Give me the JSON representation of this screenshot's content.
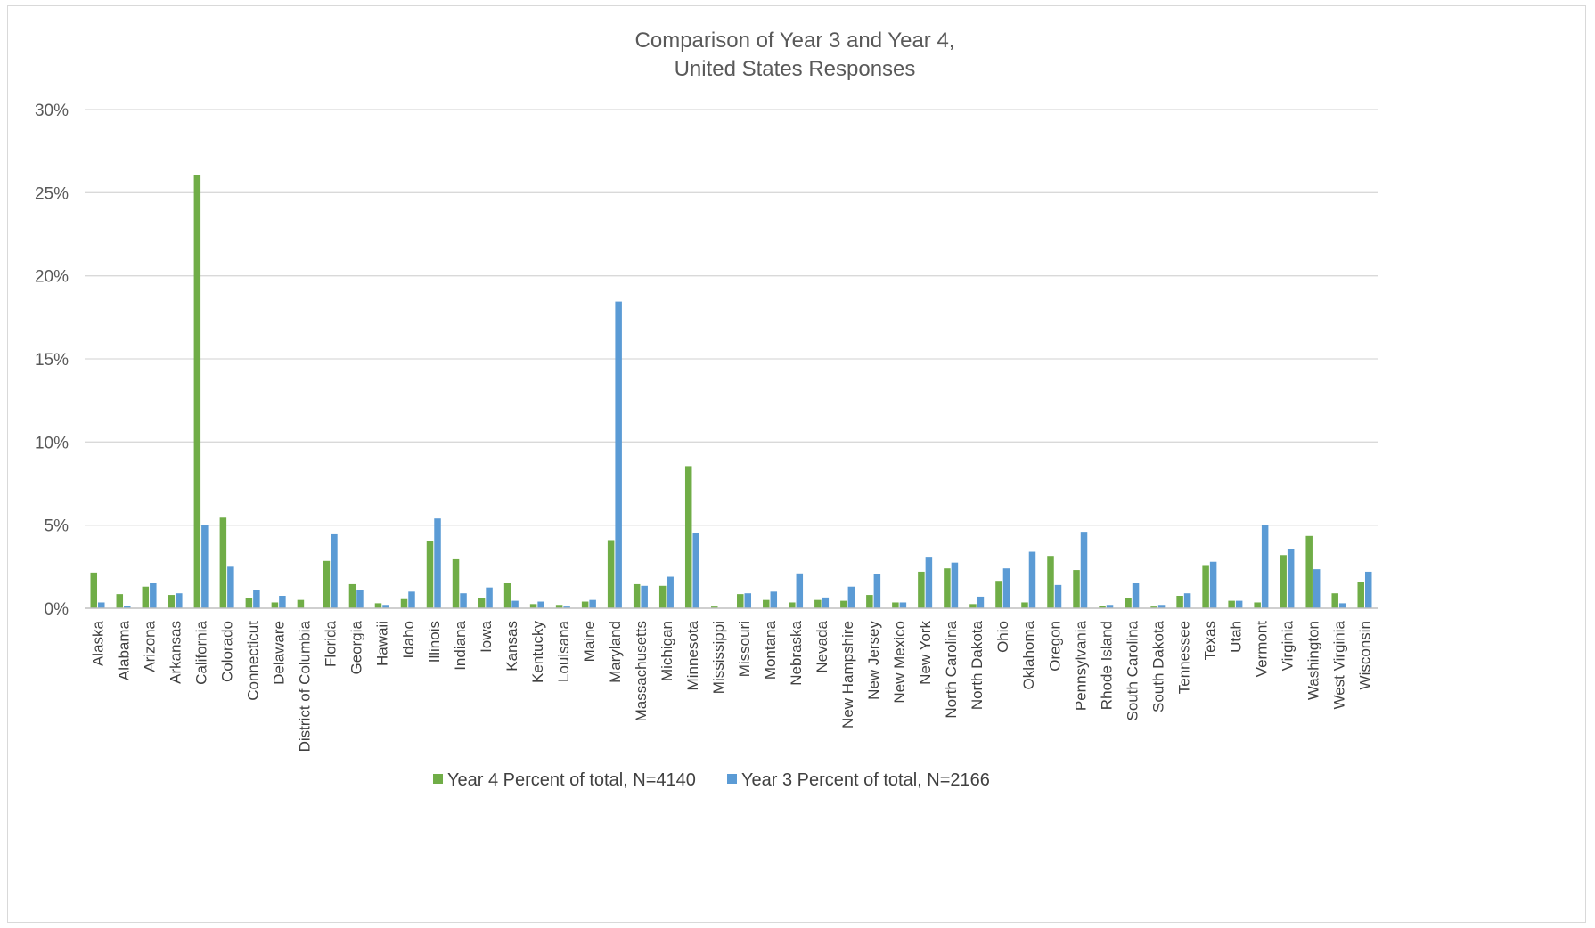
{
  "chart_data": {
    "type": "bar",
    "title": "Comparison of Year 3 and Year 4,",
    "subtitle": "United States Responses",
    "xlabel": "",
    "ylabel": "",
    "ylim": [
      0,
      30
    ],
    "yticks": [
      "0%",
      "5%",
      "10%",
      "15%",
      "20%",
      "25%",
      "30%"
    ],
    "grid": true,
    "legend_position": "bottom",
    "categories": [
      "Alaska",
      "Alabama",
      "Arizona",
      "Arkansas",
      "California",
      "Colorado",
      "Connecticut",
      "Delaware",
      "District of Columbia",
      "Florida",
      "Georgia",
      "Hawaii",
      "Idaho",
      "Illinois",
      "Indiana",
      "Iowa",
      "Kansas",
      "Kentucky",
      "Louisana",
      "Maine",
      "Maryland",
      "Massachusetts",
      "Michigan",
      "Minnesota",
      "Mississippi",
      "Missouri",
      "Montana",
      "Nebraska",
      "Nevada",
      "New Hampshire",
      "New Jersey",
      "New Mexico",
      "New York",
      "North Carolina",
      "North Dakota",
      "Ohio",
      "Oklahoma",
      "Oregon",
      "Pennsylvania",
      "Rhode Island",
      "South Carolina",
      "South Dakota",
      "Tennessee",
      "Texas",
      "Utah",
      "Vermont",
      "Virginia",
      "Washington",
      "West Virginia",
      "Wisconsin"
    ],
    "series": [
      {
        "name": "Year 4 Percent of total, N=4140",
        "color": "#70ad47",
        "values": [
          2.15,
          0.85,
          1.3,
          0.8,
          26.05,
          5.45,
          0.6,
          0.35,
          0.5,
          2.85,
          1.45,
          0.3,
          0.55,
          4.05,
          2.95,
          0.6,
          1.5,
          0.25,
          0.2,
          0.4,
          4.1,
          1.45,
          1.35,
          8.55,
          0.1,
          0.85,
          0.5,
          0.35,
          0.5,
          0.45,
          0.8,
          0.35,
          2.2,
          2.4,
          0.25,
          1.65,
          0.35,
          3.15,
          2.3,
          0.15,
          0.6,
          0.1,
          0.75,
          2.6,
          0.45,
          0.35,
          3.2,
          4.35,
          0.9,
          1.6
        ]
      },
      {
        "name": "Year 3 Percent of total, N=2166",
        "color": "#5b9bd5",
        "values": [
          0.35,
          0.15,
          1.5,
          0.9,
          5.0,
          2.5,
          1.1,
          0.75,
          0.0,
          4.45,
          1.1,
          0.2,
          1.0,
          5.4,
          0.9,
          1.25,
          0.45,
          0.4,
          0.1,
          0.5,
          18.45,
          1.35,
          1.9,
          4.5,
          0.0,
          0.9,
          1.0,
          2.1,
          0.65,
          1.3,
          2.05,
          0.35,
          3.1,
          2.75,
          0.7,
          2.4,
          3.4,
          1.4,
          4.6,
          0.2,
          1.5,
          0.2,
          0.9,
          2.8,
          0.45,
          5.0,
          3.55,
          2.35,
          0.3,
          2.2
        ]
      }
    ]
  }
}
